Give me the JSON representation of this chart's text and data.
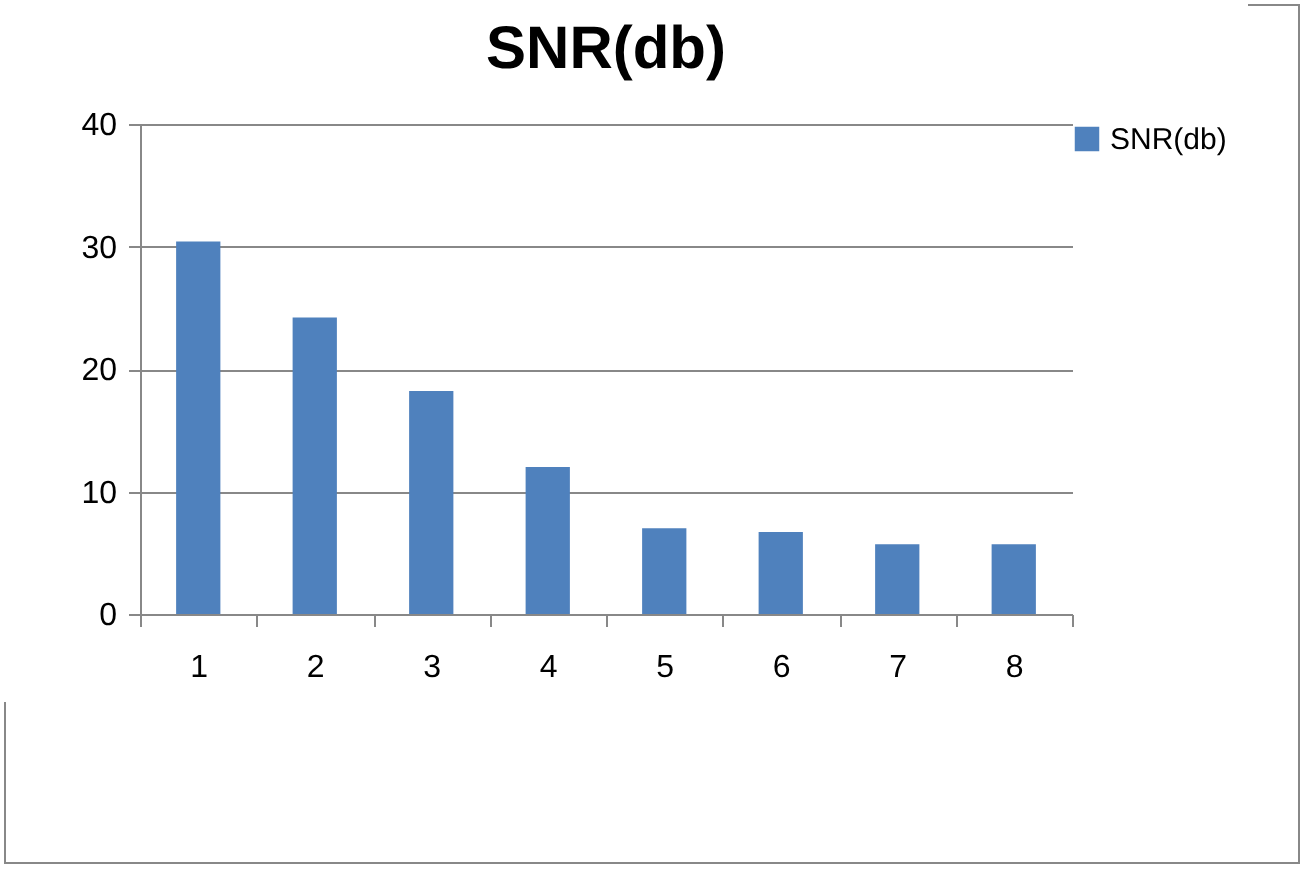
{
  "chart_data": {
    "type": "bar",
    "title": "SNR(db)",
    "categories": [
      "1",
      "2",
      "3",
      "4",
      "5",
      "6",
      "7",
      "8"
    ],
    "series": [
      {
        "name": "SNR(db)",
        "color": "#4f81bd",
        "values": [
          30.4,
          24.2,
          18.2,
          12.0,
          7.0,
          6.7,
          5.7,
          5.7
        ]
      }
    ],
    "ylim": [
      0,
      40
    ],
    "yticks": [
      0,
      10,
      20,
      30,
      40
    ],
    "grid": "y",
    "legend": "right"
  }
}
